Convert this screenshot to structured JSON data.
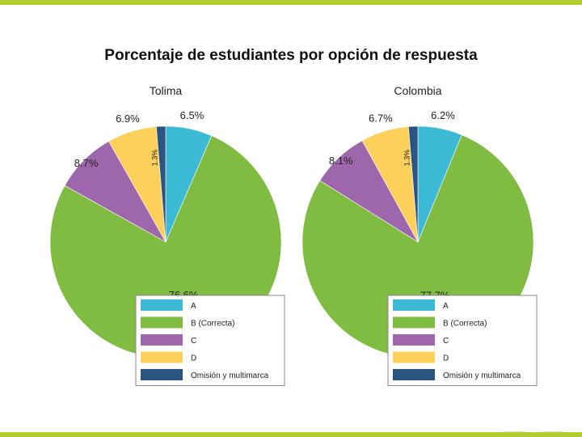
{
  "slide": {
    "title": "Porcentaje de estudiantes por opción de respuesta",
    "accent_color": "#b5cc2e"
  },
  "chart_data": [
    {
      "type": "pie",
      "title": "Tolima",
      "categories": [
        "A",
        "B (Correcta)",
        "C",
        "D",
        "Omisión y multimarca"
      ],
      "values": [
        6.5,
        76.6,
        8.7,
        6.9,
        1.3
      ],
      "labels": [
        "6.5%",
        "76.6%",
        "8.7%",
        "6.9%",
        "1.3%"
      ],
      "colors": [
        "#3bb9d5",
        "#7fbc41",
        "#9e67ab",
        "#fdd05b",
        "#2c5480"
      ],
      "start": "12 o'clock, clockwise",
      "legend": "bottom-right"
    },
    {
      "type": "pie",
      "title": "Colombia",
      "categories": [
        "A",
        "B (Correcta)",
        "C",
        "D",
        "Omisión y multimarca"
      ],
      "values": [
        6.2,
        77.7,
        8.1,
        6.7,
        1.3
      ],
      "labels": [
        "6.2%",
        "77.7%",
        "8.1%",
        "6.7%",
        "1.3%"
      ],
      "colors": [
        "#3bb9d5",
        "#7fbc41",
        "#9e67ab",
        "#fdd05b",
        "#2c5480"
      ],
      "start": "12 o'clock, clockwise",
      "legend": "bottom-right"
    }
  ]
}
